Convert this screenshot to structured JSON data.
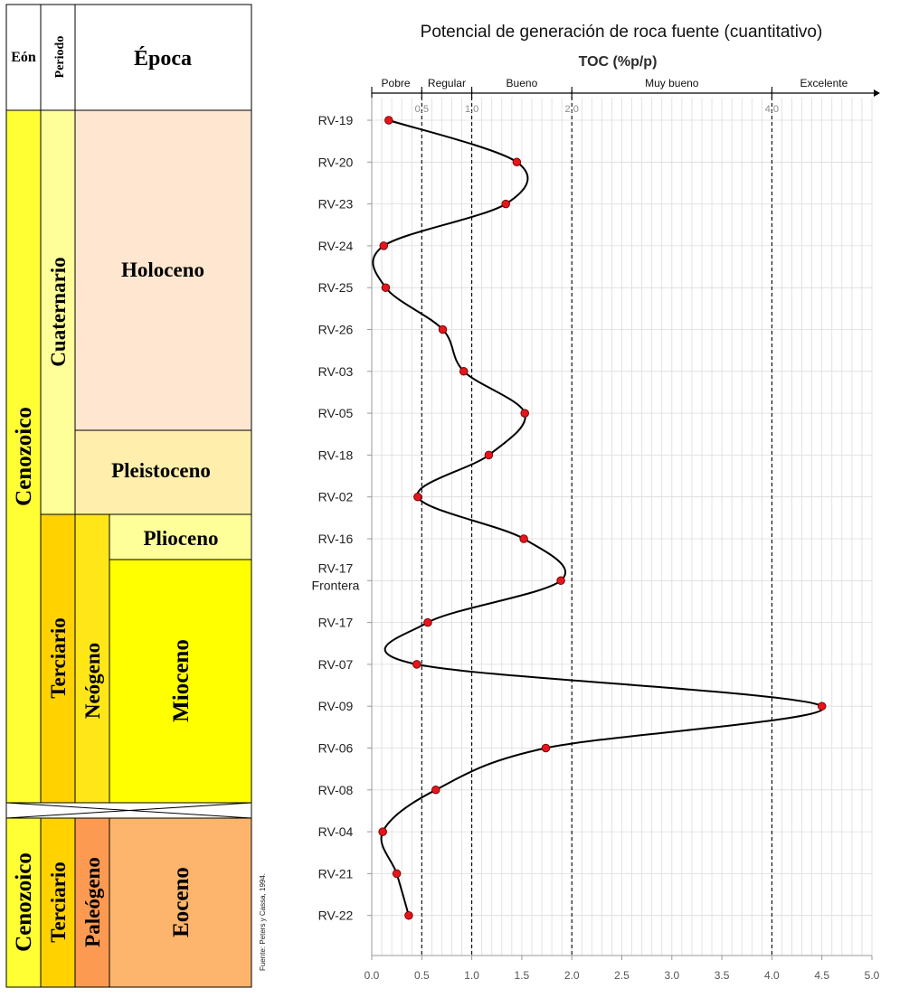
{
  "stratigraphy": {
    "headers": {
      "eon": "Eón",
      "period": "Periodo",
      "epoch": "Época"
    },
    "eons": [
      "Cenozoico",
      "Cenozoico"
    ],
    "periods": [
      "Cuaternario",
      "Terciario",
      "Terciario"
    ],
    "subperiods": [
      "Neógeno",
      "Paleógeno"
    ],
    "epochs": [
      "Holoceno",
      "Pleistoceno",
      "Plioceno",
      "Mioceno",
      "Eoceno"
    ],
    "source_note": "Fuente: Peters y Cassa, 1994.",
    "colors": {
      "eon": "#ffff33",
      "cuaternario": "#ffff99",
      "terciario": "#ffd200",
      "neogeno": "#ffe619",
      "paleogeno": "#fd9a52",
      "holoceno": "#fee6d0",
      "pleistoceno": "#ffeeac",
      "plioceno": "#ffff99",
      "mioceno": "#ffff00",
      "eoceno": "#fdb46c"
    }
  },
  "chart_data": {
    "type": "line",
    "title": "Potencial de generación de roca fuente (cuantitativo)",
    "subtitle": "TOC (%p/p)",
    "xlim": [
      0,
      5
    ],
    "x_ticks": [
      "0.0",
      "0.5",
      "1.0",
      "1.5",
      "2.0",
      "2.5",
      "3.0",
      "3.5",
      "4.0",
      "4.5",
      "5.0"
    ],
    "categories": [
      "Pobre",
      "Regular",
      "Bueno",
      "Muy bueno",
      "Excelente"
    ],
    "thresholds": [
      {
        "value": 0.5,
        "label": "0.5"
      },
      {
        "value": 1.0,
        "label": "1.0"
      },
      {
        "value": 2.0,
        "label": "2.0"
      },
      {
        "value": 4.0,
        "label": "4.0"
      }
    ],
    "samples": [
      {
        "label": "RV-19",
        "toc": 0.17
      },
      {
        "label": "RV-20",
        "toc": 1.45
      },
      {
        "label": "RV-23",
        "toc": 1.34
      },
      {
        "label": "RV-24",
        "toc": 0.12
      },
      {
        "label": "RV-25",
        "toc": 0.14
      },
      {
        "label": "RV-26",
        "toc": 0.71
      },
      {
        "label": "RV-03",
        "toc": 0.92
      },
      {
        "label": "RV-05",
        "toc": 1.53
      },
      {
        "label": "RV-18",
        "toc": 1.17
      },
      {
        "label": "RV-02",
        "toc": 0.46
      },
      {
        "label": "RV-16",
        "toc": 1.52
      },
      {
        "label": "RV-17",
        "label2": "Frontera",
        "toc": 1.89
      },
      {
        "label": "RV-17",
        "toc": 0.56
      },
      {
        "label": "RV-07",
        "toc": 0.45
      },
      {
        "label": "RV-09",
        "toc": 4.5
      },
      {
        "label": "RV-06",
        "toc": 1.74
      },
      {
        "label": "RV-08",
        "toc": 0.64
      },
      {
        "label": "RV-04",
        "toc": 0.11
      },
      {
        "label": "RV-21",
        "toc": 0.25
      },
      {
        "label": "RV-22",
        "toc": 0.37
      }
    ],
    "line_color": "#000000",
    "marker_color": "#e8141c"
  }
}
